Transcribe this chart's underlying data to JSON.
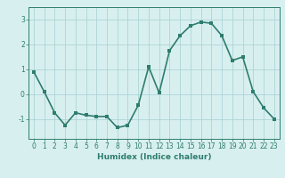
{
  "x": [
    0,
    1,
    2,
    3,
    4,
    5,
    6,
    7,
    8,
    9,
    10,
    11,
    12,
    13,
    14,
    15,
    16,
    17,
    18,
    19,
    20,
    21,
    22,
    23
  ],
  "y": [
    0.9,
    0.1,
    -0.75,
    -1.25,
    -0.75,
    -0.85,
    -0.9,
    -0.9,
    -1.35,
    -1.25,
    -0.45,
    1.1,
    0.05,
    1.75,
    2.35,
    2.75,
    2.9,
    2.85,
    2.35,
    1.35,
    1.5,
    0.1,
    -0.55,
    -1.0
  ],
  "line_color": "#2e7d6e",
  "bg_color": "#d8eff0",
  "grid_color": "#aed4d6",
  "xlabel": "Humidex (Indice chaleur)",
  "xlim": [
    -0.5,
    23.5
  ],
  "ylim": [
    -1.8,
    3.5
  ],
  "yticks": [
    -1,
    0,
    1,
    2,
    3
  ],
  "xticks": [
    0,
    1,
    2,
    3,
    4,
    5,
    6,
    7,
    8,
    9,
    10,
    11,
    12,
    13,
    14,
    15,
    16,
    17,
    18,
    19,
    20,
    21,
    22,
    23
  ],
  "marker_size": 2.5,
  "line_width": 1.2,
  "font_color": "#2e7d6e",
  "label_fontsize": 6.5,
  "tick_fontsize": 5.5
}
